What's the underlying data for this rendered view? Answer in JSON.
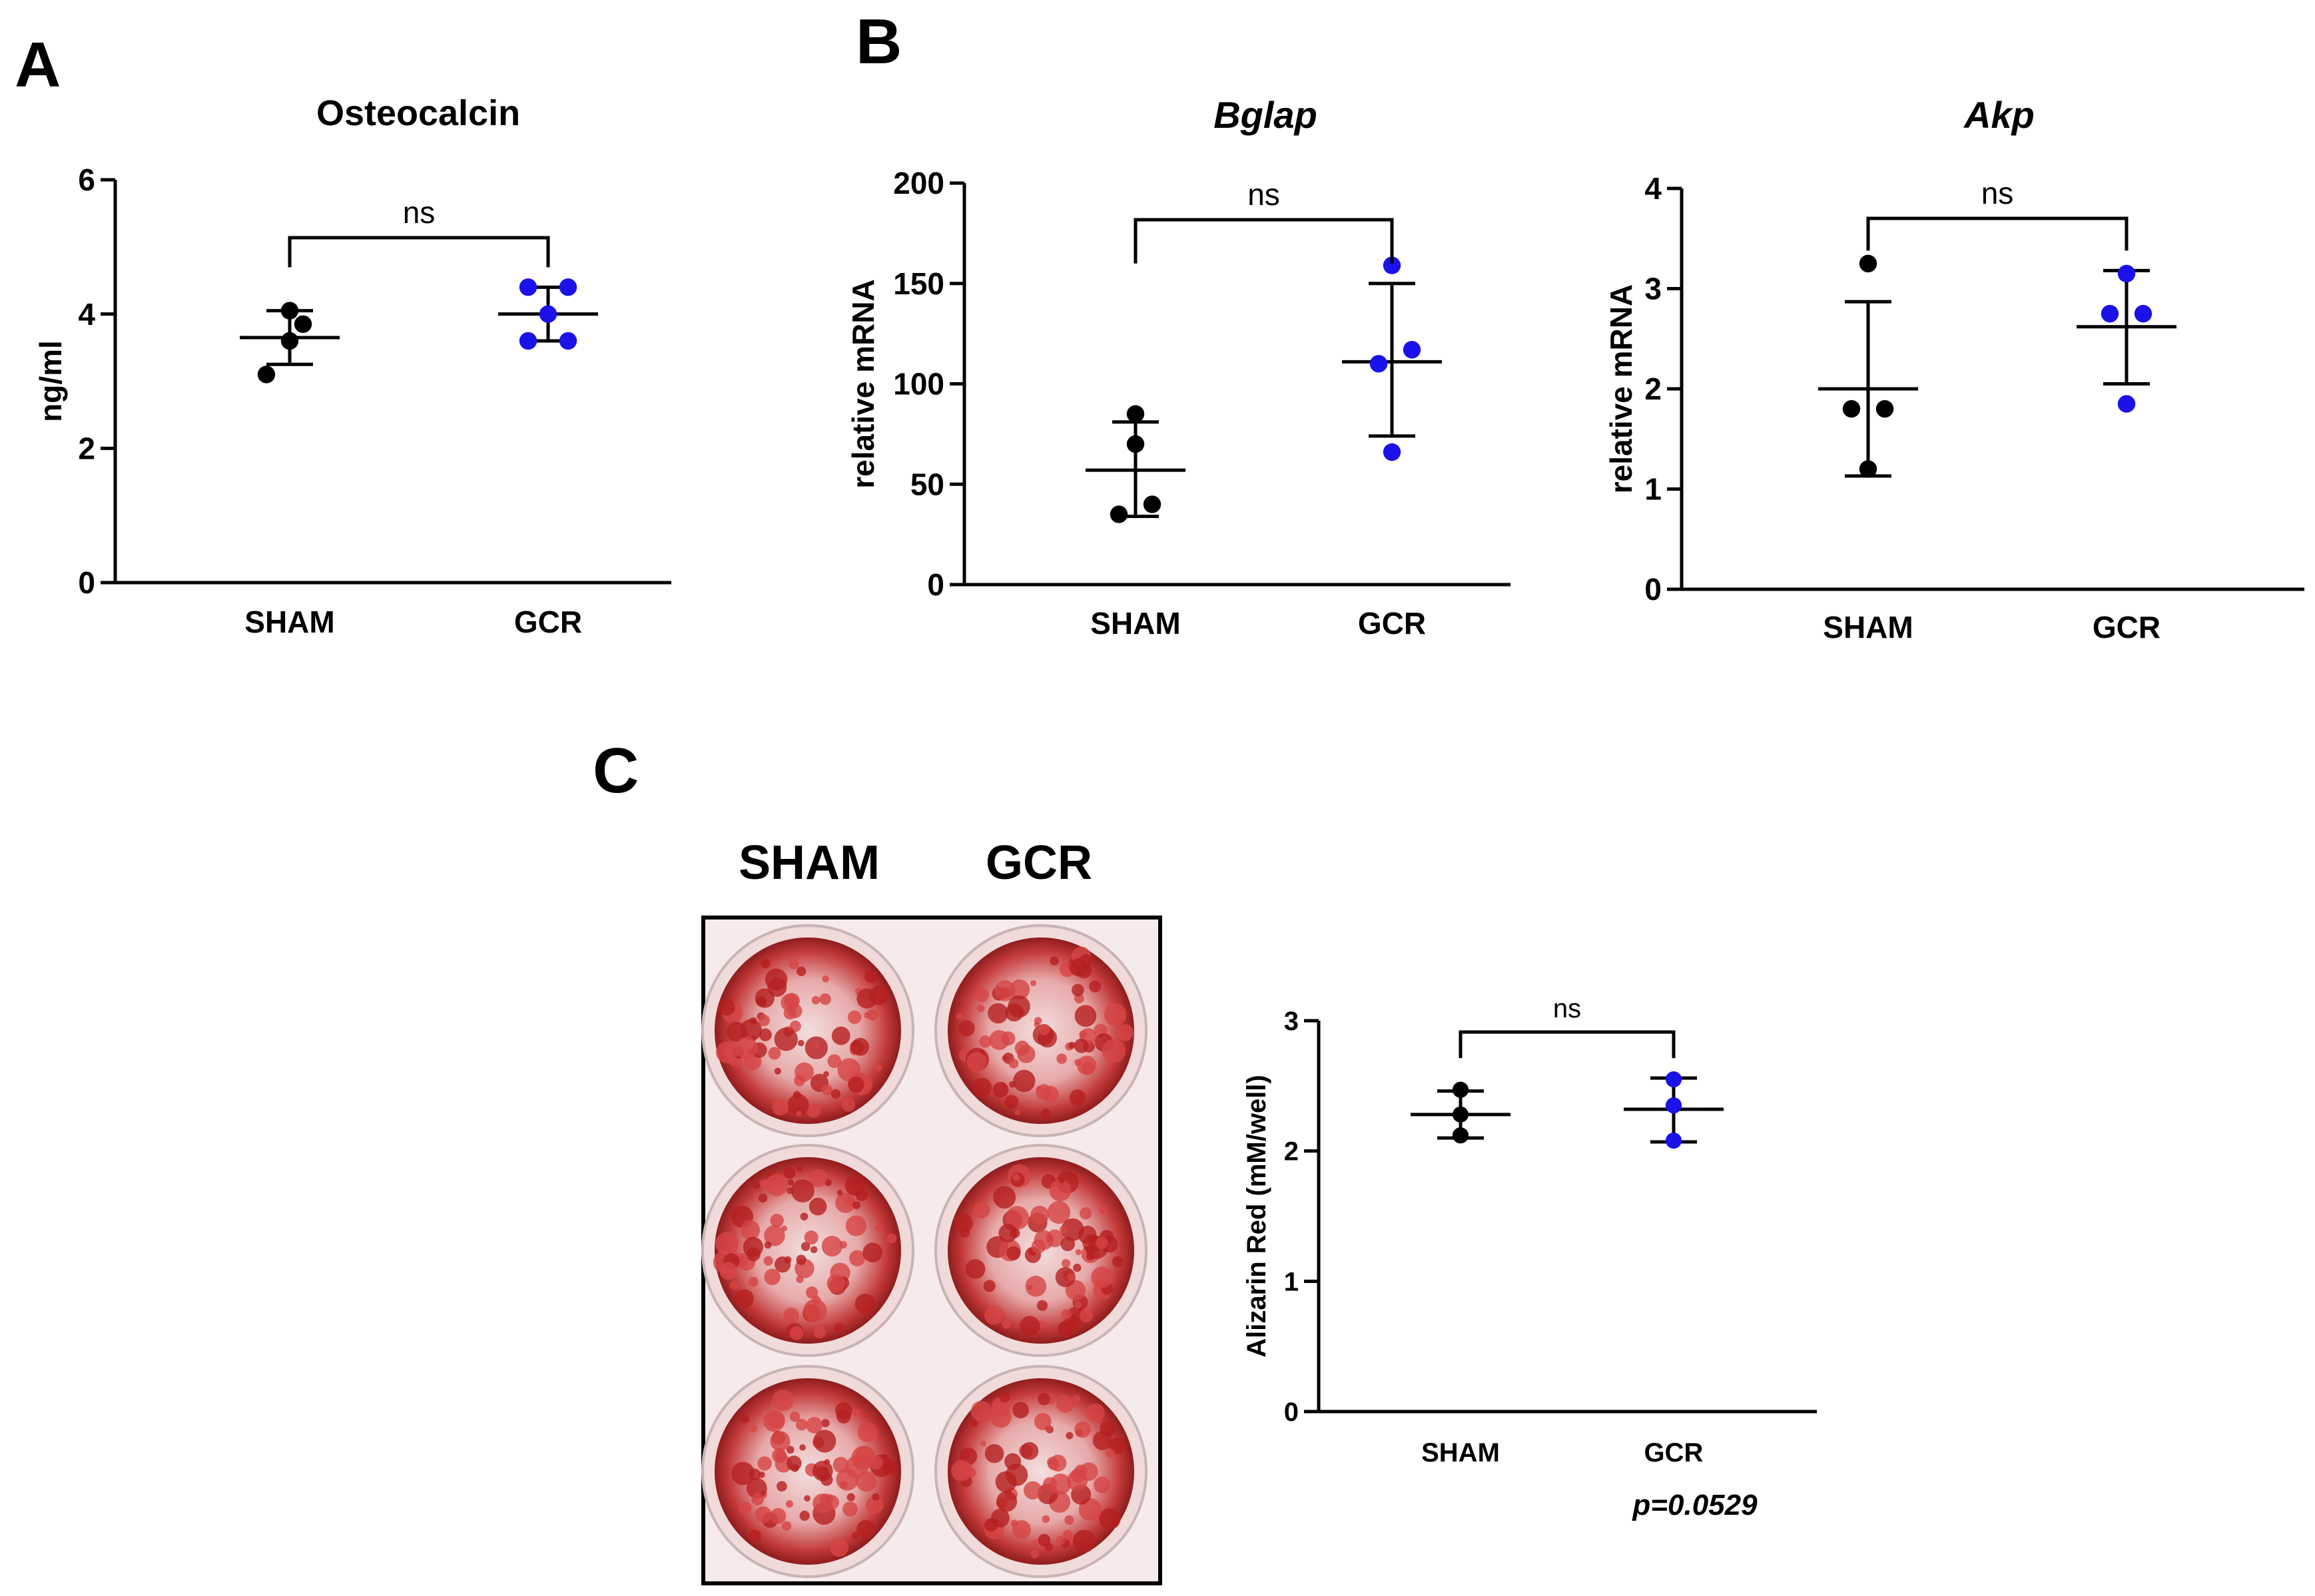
{
  "panel_labels": {
    "a": "A",
    "b": "B",
    "c": "C"
  },
  "colors": {
    "sham": "#000000",
    "gcr": "#1a12e8",
    "axis": "#000000",
    "stain": "#b01e1e",
    "plate": "#f4e6e6"
  },
  "plate": {
    "labels": [
      "SHAM",
      "GCR"
    ],
    "description": "6-well plate with Alizarin Red staining"
  },
  "chart_data": [
    {
      "id": "osteocalcin",
      "type": "scatter",
      "title": "Osteocalcin",
      "title_italic": false,
      "xlabel": "",
      "ylabel": "ng/ml",
      "categories": [
        "SHAM",
        "GCR"
      ],
      "ylim": [
        0,
        6
      ],
      "yticks": [
        0,
        2,
        4,
        6
      ],
      "series": [
        {
          "name": "SHAM",
          "points": [
            3.1,
            3.6,
            3.85,
            4.05
          ],
          "mean": 3.65,
          "sd_low": 3.25,
          "sd_high": 4.05
        },
        {
          "name": "GCR",
          "points": [
            3.6,
            3.6,
            4.0,
            4.4,
            4.4
          ],
          "mean": 4.0,
          "sd_low": 3.6,
          "sd_high": 4.4
        }
      ],
      "significance": {
        "label": "ns",
        "between": [
          "SHAM",
          "GCR"
        ]
      }
    },
    {
      "id": "bglap",
      "type": "scatter",
      "title": "Bglap",
      "title_italic": true,
      "xlabel": "",
      "ylabel": "relative mRNA",
      "categories": [
        "SHAM",
        "GCR"
      ],
      "ylim": [
        0,
        200
      ],
      "yticks": [
        0,
        50,
        100,
        150,
        200
      ],
      "series": [
        {
          "name": "SHAM",
          "points": [
            35,
            40,
            70,
            85
          ],
          "mean": 57,
          "sd_low": 34,
          "sd_high": 81
        },
        {
          "name": "GCR",
          "points": [
            66,
            110,
            117,
            159
          ],
          "mean": 111,
          "sd_low": 74,
          "sd_high": 150
        }
      ],
      "significance": {
        "label": "ns",
        "between": [
          "SHAM",
          "GCR"
        ]
      }
    },
    {
      "id": "akp",
      "type": "scatter",
      "title": "Akp",
      "title_italic": true,
      "xlabel": "",
      "ylabel": "relative mRNA",
      "categories": [
        "SHAM",
        "GCR"
      ],
      "ylim": [
        0,
        4
      ],
      "yticks": [
        0,
        1,
        2,
        3,
        4
      ],
      "series": [
        {
          "name": "SHAM",
          "points": [
            1.2,
            1.8,
            1.8,
            3.25
          ],
          "mean": 2.0,
          "sd_low": 1.13,
          "sd_high": 2.87
        },
        {
          "name": "GCR",
          "points": [
            1.85,
            2.75,
            2.75,
            3.15
          ],
          "mean": 2.62,
          "sd_low": 2.05,
          "sd_high": 3.18
        }
      ],
      "significance": {
        "label": "ns",
        "between": [
          "SHAM",
          "GCR"
        ]
      }
    },
    {
      "id": "alizarin",
      "type": "scatter",
      "title": "",
      "title_italic": false,
      "xlabel": "",
      "ylabel": "Alizarin Red (mM/well)",
      "categories": [
        "SHAM",
        "GCR"
      ],
      "ylim": [
        0,
        3
      ],
      "yticks": [
        0,
        1,
        2,
        3
      ],
      "series": [
        {
          "name": "SHAM",
          "points": [
            2.12,
            2.28,
            2.47
          ],
          "mean": 2.28,
          "sd_low": 2.1,
          "sd_high": 2.46
        },
        {
          "name": "GCR",
          "points": [
            2.08,
            2.35,
            2.55
          ],
          "mean": 2.32,
          "sd_low": 2.07,
          "sd_high": 2.56
        }
      ],
      "significance": {
        "label": "ns",
        "between": [
          "SHAM",
          "GCR"
        ]
      },
      "note": "p=0.0529"
    }
  ]
}
